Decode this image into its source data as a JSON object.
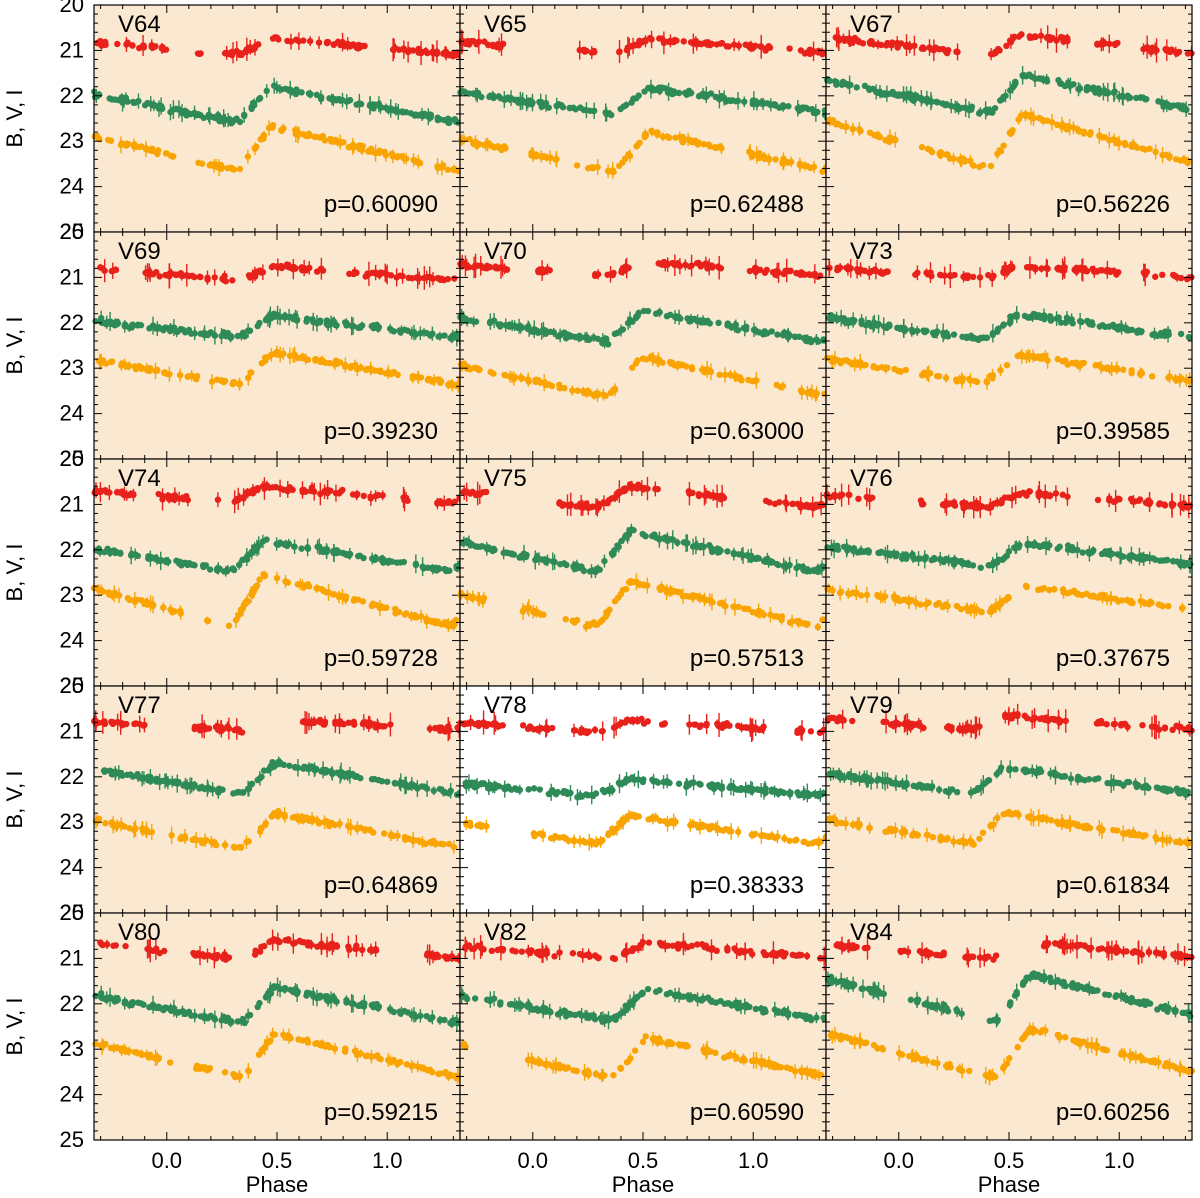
{
  "chart_data": {
    "type": "scatter",
    "title": "",
    "xlabel": "Phase",
    "ylabel": "B, V, I",
    "xlim": [
      -0.33,
      1.33
    ],
    "ylim": [
      25,
      20
    ],
    "xticks": [
      "0.0",
      "0.5",
      "1.0"
    ],
    "xtick_values": [
      0.0,
      0.5,
      1.0
    ],
    "yticks": [
      "20",
      "21",
      "22",
      "23",
      "24",
      "25"
    ],
    "ytick_values": [
      20,
      21,
      22,
      23,
      24,
      25
    ],
    "grid": false,
    "panel_background": "#fbe8d0",
    "highlight_background": "#ffffff",
    "series_colors": {
      "I": "#e8221b",
      "V": "#2e8b57",
      "B": "#f9a400"
    },
    "panels": [
      {
        "name": "V64",
        "period_label": "p=0.60090",
        "highlight": false,
        "B_base": 23.62,
        "B_amp": 0.95,
        "V_base": 22.55,
        "V_amp": 0.75,
        "I_base": 21.08,
        "I_amp": 0.35,
        "rise_phase": 0.33,
        "B_gaps": [
          [
            0.03,
            0.12
          ],
          [
            0.53,
            0.57
          ]
        ],
        "V_gaps": [],
        "I_gaps": [
          [
            0.0,
            0.12
          ],
          [
            0.18,
            0.26
          ],
          [
            0.44,
            0.48
          ],
          [
            0.93,
            1.02
          ]
        ]
      },
      {
        "name": "V65",
        "period_label": "p=0.62488",
        "highlight": false,
        "B_base": 23.65,
        "B_amp": 0.85,
        "V_base": 22.38,
        "V_amp": 0.55,
        "I_base": 21.05,
        "I_amp": 0.3,
        "rise_phase": 0.38,
        "B_gaps": [
          [
            -0.12,
            -0.02
          ],
          [
            0.12,
            0.2
          ],
          [
            0.86,
            0.98
          ]
        ],
        "V_gaps": [],
        "I_gaps": [
          [
            -0.12,
            0.2
          ],
          [
            0.28,
            0.38
          ],
          [
            1.08,
            1.16
          ]
        ]
      },
      {
        "name": "V67",
        "period_label": "p=0.56226",
        "highlight": false,
        "B_base": 23.55,
        "B_amp": 1.15,
        "V_base": 22.35,
        "V_amp": 0.8,
        "I_base": 21.1,
        "I_amp": 0.45,
        "rise_phase": 0.42,
        "B_gaps": [
          [
            0.0,
            0.1
          ]
        ],
        "V_gaps": [],
        "I_gaps": [
          [
            0.28,
            0.4
          ],
          [
            0.78,
            0.9
          ],
          [
            1.02,
            1.1
          ]
        ]
      },
      {
        "name": "V69",
        "period_label": "p=0.39230",
        "highlight": false,
        "B_base": 23.35,
        "B_amp": 0.7,
        "V_base": 22.3,
        "V_amp": 0.45,
        "I_base": 21.05,
        "I_amp": 0.3,
        "rise_phase": 0.34,
        "B_gaps": [
          [
            0.14,
            0.2
          ]
        ],
        "V_gaps": [],
        "I_gaps": [
          [
            -0.22,
            -0.1
          ],
          [
            0.3,
            0.36
          ],
          [
            0.72,
            0.82
          ]
        ]
      },
      {
        "name": "V70",
        "period_label": "p=0.63000",
        "highlight": false,
        "B_base": 23.6,
        "B_amp": 0.85,
        "V_base": 22.4,
        "V_amp": 0.65,
        "I_base": 20.95,
        "I_amp": 0.3,
        "rise_phase": 0.35,
        "B_gaps": [
          [
            0.38,
            0.42
          ],
          [
            1.02,
            1.1
          ]
        ],
        "V_gaps": [],
        "I_gaps": [
          [
            -0.1,
            0.02
          ],
          [
            0.12,
            0.28
          ],
          [
            0.45,
            0.56
          ],
          [
            0.86,
            0.96
          ]
        ]
      },
      {
        "name": "V73",
        "period_label": "p=0.39585",
        "highlight": false,
        "B_base": 23.3,
        "B_amp": 0.6,
        "V_base": 22.35,
        "V_amp": 0.55,
        "I_base": 21.0,
        "I_amp": 0.25,
        "rise_phase": 0.4,
        "B_gaps": [
          [
            0.05,
            0.1
          ],
          [
            1.15,
            1.22
          ]
        ],
        "V_gaps": [],
        "I_gaps": [
          [
            -0.05,
            0.05
          ],
          [
            0.52,
            0.58
          ],
          [
            1.0,
            1.1
          ]
        ]
      },
      {
        "name": "V74",
        "period_label": "p=0.59728",
        "highlight": false,
        "B_base": 23.65,
        "B_amp": 1.1,
        "V_base": 22.45,
        "V_amp": 0.65,
        "I_base": 20.95,
        "I_amp": 0.35,
        "rise_phase": 0.3,
        "B_gaps": [
          [
            0.08,
            0.18
          ],
          [
            0.2,
            0.27
          ]
        ],
        "V_gaps": [],
        "I_gaps": [
          [
            -0.15,
            -0.05
          ],
          [
            0.1,
            0.22
          ],
          [
            0.24,
            0.3
          ],
          [
            0.98,
            1.06
          ],
          [
            1.1,
            1.22
          ]
        ]
      },
      {
        "name": "V75",
        "period_label": "p=0.57513",
        "highlight": false,
        "B_base": 23.65,
        "B_amp": 0.95,
        "V_base": 22.45,
        "V_amp": 0.85,
        "I_base": 21.05,
        "I_amp": 0.45,
        "rise_phase": 0.3,
        "B_gaps": [
          [
            -0.2,
            -0.08
          ],
          [
            0.06,
            0.12
          ]
        ],
        "V_gaps": [],
        "I_gaps": [
          [
            -0.2,
            0.12
          ],
          [
            0.58,
            0.7
          ],
          [
            0.88,
            1.05
          ]
        ]
      },
      {
        "name": "V76",
        "period_label": "p=0.37675",
        "highlight": false,
        "B_base": 23.35,
        "B_amp": 0.55,
        "V_base": 22.35,
        "V_amp": 0.5,
        "I_base": 21.05,
        "I_amp": 0.3,
        "rise_phase": 0.42,
        "B_gaps": [
          [
            0.5,
            0.56
          ]
        ],
        "V_gaps": [],
        "I_gaps": [
          [
            -0.12,
            0.1
          ],
          [
            0.12,
            0.2
          ],
          [
            0.78,
            0.9
          ]
        ]
      },
      {
        "name": "V77",
        "period_label": "p=0.64869",
        "highlight": false,
        "B_base": 23.55,
        "B_amp": 0.75,
        "V_base": 22.35,
        "V_amp": 0.65,
        "I_base": 20.95,
        "I_amp": 0.2,
        "rise_phase": 0.35,
        "B_gaps": [
          [
            -0.02,
            0.02
          ],
          [
            0.38,
            0.42
          ]
        ],
        "V_gaps": [],
        "I_gaps": [
          [
            -0.1,
            0.12
          ],
          [
            0.35,
            0.6
          ],
          [
            1.02,
            1.18
          ]
        ]
      },
      {
        "name": "V78",
        "period_label": "p=0.38333",
        "highlight": true,
        "B_base": 23.45,
        "B_amp": 0.6,
        "V_base": 22.4,
        "V_amp": 0.35,
        "I_base": 21.0,
        "I_amp": 0.25,
        "rise_phase": 0.3,
        "B_gaps": [
          [
            -0.2,
            0.0
          ]
        ],
        "V_gaps": [],
        "I_gaps": [
          [
            -0.12,
            -0.05
          ],
          [
            0.1,
            0.18
          ],
          [
            0.32,
            0.36
          ],
          [
            0.62,
            0.7
          ],
          [
            1.05,
            1.2
          ]
        ]
      },
      {
        "name": "V79",
        "period_label": "p=0.61834",
        "highlight": false,
        "B_base": 23.45,
        "B_amp": 0.65,
        "V_base": 22.35,
        "V_amp": 0.55,
        "I_base": 20.95,
        "I_amp": 0.3,
        "rise_phase": 0.34,
        "B_gaps": [
          [
            -0.12,
            -0.06
          ]
        ],
        "V_gaps": [],
        "I_gaps": [
          [
            -0.2,
            -0.08
          ],
          [
            0.12,
            0.18
          ],
          [
            0.38,
            0.48
          ],
          [
            0.78,
            0.88
          ],
          [
            1.04,
            1.1
          ]
        ]
      },
      {
        "name": "V80",
        "period_label": "p=0.59215",
        "highlight": false,
        "B_base": 23.6,
        "B_amp": 0.95,
        "V_base": 22.4,
        "V_amp": 0.75,
        "I_base": 21.0,
        "I_amp": 0.4,
        "rise_phase": 0.35,
        "B_gaps": [
          [
            0.02,
            0.1
          ]
        ],
        "V_gaps": [],
        "I_gaps": [
          [
            -0.18,
            -0.1
          ],
          [
            0.0,
            0.12
          ],
          [
            0.3,
            0.4
          ],
          [
            0.78,
            0.82
          ],
          [
            0.95,
            1.18
          ]
        ]
      },
      {
        "name": "V82",
        "period_label": "p=0.60590",
        "highlight": false,
        "B_base": 23.6,
        "B_amp": 0.85,
        "V_base": 22.35,
        "V_amp": 0.65,
        "I_base": 21.0,
        "I_amp": 0.35,
        "rise_phase": 0.37,
        "B_gaps": [
          [
            -0.3,
            -0.05
          ]
        ],
        "V_gaps": [],
        "I_gaps": [
          [
            0.3,
            0.36
          ],
          [
            1.25,
            1.3
          ]
        ]
      },
      {
        "name": "V84",
        "period_label": "p=0.60256",
        "highlight": false,
        "B_base": 23.6,
        "B_amp": 1.05,
        "V_base": 22.35,
        "V_amp": 1.0,
        "I_base": 21.0,
        "I_amp": 0.35,
        "rise_phase": 0.45,
        "B_gaps": [
          [
            -0.05,
            0.0
          ],
          [
            0.95,
            1.0
          ]
        ],
        "V_gaps": [
          [
            -0.02,
            0.05
          ],
          [
            0.3,
            0.4
          ]
        ],
        "I_gaps": [
          [
            -0.1,
            0.0
          ],
          [
            0.22,
            0.28
          ],
          [
            0.45,
            0.65
          ]
        ]
      }
    ]
  }
}
